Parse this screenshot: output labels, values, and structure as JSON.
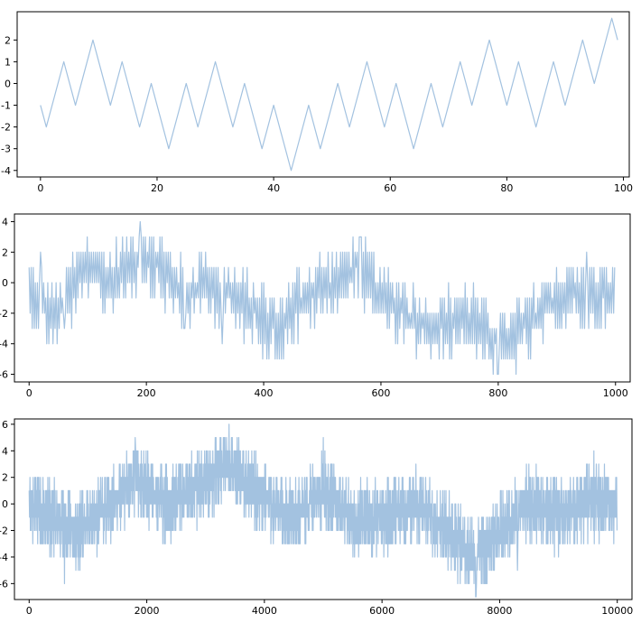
{
  "figure": {
    "background": "#ffffff",
    "line_color": "#6699cc",
    "line_opacity": 0.6
  },
  "chart_data": [
    {
      "type": "line",
      "xlim": [
        -4,
        101
      ],
      "ylim": [
        -4.3,
        3.3
      ],
      "xticks": [
        0,
        20,
        40,
        60,
        80,
        100
      ],
      "yticks": [
        -4,
        -3,
        -2,
        -1,
        0,
        1,
        2
      ],
      "series": [
        {
          "x": [
            0,
            1,
            4,
            6,
            9,
            12,
            14,
            17,
            19,
            22,
            25,
            27,
            30,
            33,
            35,
            38,
            40,
            43,
            46,
            48,
            51,
            53,
            56,
            59,
            61,
            64,
            67,
            69,
            72,
            74,
            77,
            80,
            82,
            85,
            88,
            90,
            93,
            95,
            98,
            99
          ],
          "y": [
            -1,
            -2,
            1,
            -1,
            2,
            -1,
            1,
            -2,
            0,
            -3,
            0,
            -2,
            1,
            -2,
            0,
            -3,
            -1,
            -4,
            -1,
            -3,
            0,
            -2,
            1,
            -2,
            0,
            -3,
            0,
            -2,
            1,
            -1,
            2,
            -1,
            1,
            -2,
            1,
            -1,
            2,
            0,
            3,
            2
          ]
        }
      ]
    },
    {
      "type": "line",
      "xlim": [
        -25,
        1025
      ],
      "ylim": [
        -6.5,
        4.5
      ],
      "xticks": [
        0,
        200,
        400,
        600,
        800,
        1000
      ],
      "yticks": [
        -6,
        -4,
        -2,
        0,
        2,
        4
      ],
      "series": [
        {
          "x": [
            0,
            45,
            100,
            140,
            190,
            225,
            265,
            300,
            350,
            420,
            470,
            520,
            560,
            600,
            640,
            700,
            745,
            800,
            845,
            900,
            950,
            1000
          ],
          "y": [
            -1,
            -2,
            1,
            0,
            2,
            1,
            -1,
            0,
            -1,
            -3,
            -1,
            0,
            1,
            -1,
            -2,
            -3,
            -2,
            -4,
            -3,
            -1,
            -1,
            -1
          ],
          "noise_amplitude": 2,
          "extremes": [
            [
              20,
              2
            ],
            [
              40,
              -4
            ],
            [
              60,
              -3
            ],
            [
              100,
              3
            ],
            [
              190,
              4
            ],
            [
              265,
              -3
            ],
            [
              330,
              -4
            ],
            [
              420,
              -5
            ],
            [
              565,
              3
            ],
            [
              700,
              -5
            ],
            [
              745,
              -4
            ],
            [
              800,
              -6
            ],
            [
              855,
              -5
            ],
            [
              950,
              2
            ]
          ]
        }
      ]
    },
    {
      "type": "line",
      "xlim": [
        -250,
        10250
      ],
      "ylim": [
        -7.2,
        6.4
      ],
      "xticks": [
        0,
        2000,
        4000,
        6000,
        8000,
        10000
      ],
      "yticks": [
        -6,
        -4,
        -2,
        0,
        2,
        4,
        6
      ],
      "series": [
        {
          "x": [
            0,
            400,
            800,
            1200,
            1800,
            2300,
            2800,
            3400,
            4100,
            4500,
            5000,
            5500,
            6000,
            6600,
            7100,
            7600,
            8000,
            8500,
            9000,
            9500,
            10000
          ],
          "y": [
            0,
            -1,
            -2,
            -1,
            2,
            0,
            1,
            3,
            0,
            -1,
            1,
            -1,
            -1,
            0,
            -2,
            -4,
            -2,
            0,
            -1,
            0,
            0
          ],
          "noise_amplitude": 2.5,
          "extremes": [
            [
              600,
              -6
            ],
            [
              1800,
              5
            ],
            [
              3400,
              6
            ],
            [
              5000,
              5
            ],
            [
              7600,
              -7
            ],
            [
              8300,
              -5
            ],
            [
              9600,
              4
            ]
          ]
        }
      ]
    }
  ]
}
